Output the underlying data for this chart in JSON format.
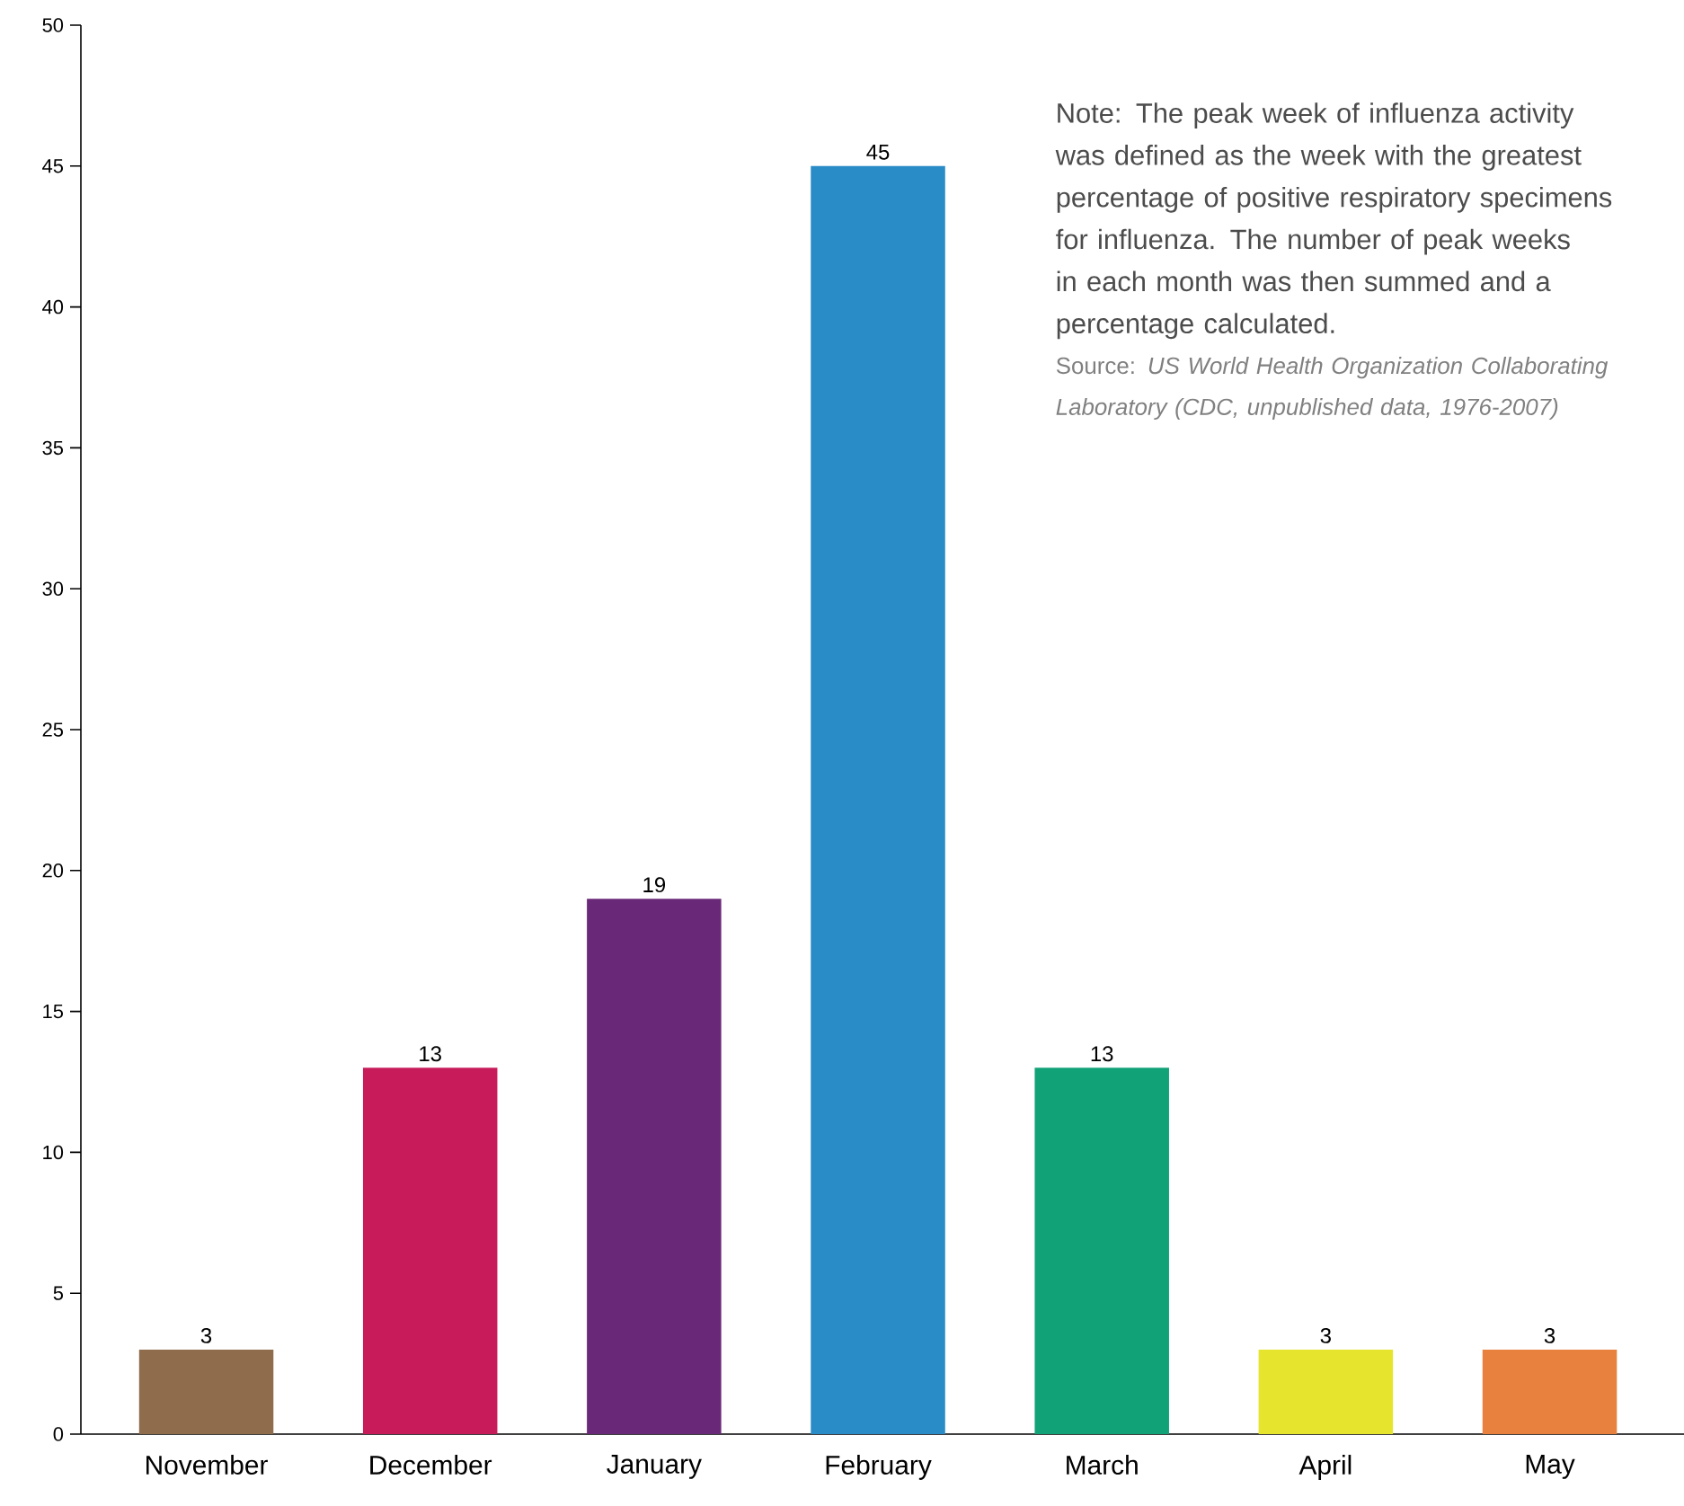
{
  "chart_data": {
    "type": "bar",
    "categories": [
      "November",
      "December",
      "January",
      "February",
      "March",
      "April",
      "May"
    ],
    "values": [
      3,
      13,
      19,
      45,
      13,
      3,
      3
    ],
    "colors": [
      "#8f6c4c",
      "#c81c5a",
      "#6a2878",
      "#2a8cc6",
      "#12a278",
      "#e6e42c",
      "#e8803e"
    ],
    "data_labels": true,
    "ylim": [
      0,
      50
    ],
    "yticks": [
      0,
      5,
      10,
      15,
      20,
      25,
      30,
      35,
      40,
      45,
      50
    ],
    "grid": false,
    "annotations": [
      "Note:  The peak week of influenza activity was defined as the week with the greatest percentage of positive respiratory specimens for influenza. The number of peak weeks in each month was then summed and a percentage calculated.",
      "Source: *US World Health Organization Collaborating Laboratory (CDC, unpublished data, 1976-2007)*"
    ]
  }
}
